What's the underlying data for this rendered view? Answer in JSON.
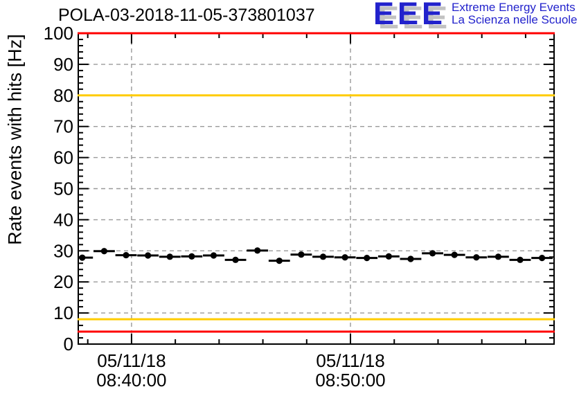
{
  "logo": {
    "acronym": "EEE",
    "line1": "Extreme Energy Events",
    "line2": "La Scienza nelle Scuole",
    "color": "#2222cc",
    "shadow_color": "#c2c2c2"
  },
  "chart_data": {
    "type": "scatter",
    "title": "POLA-03-2018-11-05-373801037",
    "ylabel": "Rate events with hits [Hz]",
    "xlabel": "",
    "ylim": [
      0,
      100
    ],
    "y_tick_step": 10,
    "y_minor_tick_step": 2,
    "y_ticks": [
      0,
      10,
      20,
      30,
      40,
      50,
      60,
      70,
      80,
      90,
      100
    ],
    "x_range": [
      "08:37:34",
      "08:59:18"
    ],
    "x_minor_tick_step_minutes": 2,
    "x_major_ticks": [
      {
        "date": "05/11/18",
        "time": "08:40:00"
      },
      {
        "date": "05/11/18",
        "time": "08:50:00"
      }
    ],
    "grid": {
      "style": "dashed",
      "color": "#999999",
      "on_major_ticks": true
    },
    "frame_color": "#000000",
    "threshold_lines": [
      {
        "value": 100,
        "color": "#ff0000"
      },
      {
        "value": 80,
        "color": "#ffcc00"
      },
      {
        "value": 8,
        "color": "#ffcc00"
      },
      {
        "value": 4,
        "color": "#ff0000"
      }
    ],
    "series": [
      {
        "name": "rate_events_with_hits",
        "marker": "filled-circle",
        "color": "#000000",
        "bin_width_minutes": 1,
        "points": [
          {
            "t": "08:37:45",
            "v": 27.8
          },
          {
            "t": "08:38:45",
            "v": 29.9
          },
          {
            "t": "08:39:45",
            "v": 28.6
          },
          {
            "t": "08:40:45",
            "v": 28.5
          },
          {
            "t": "08:41:45",
            "v": 28.1
          },
          {
            "t": "08:42:45",
            "v": 28.2
          },
          {
            "t": "08:43:45",
            "v": 28.5
          },
          {
            "t": "08:44:45",
            "v": 27.1
          },
          {
            "t": "08:45:45",
            "v": 30.1
          },
          {
            "t": "08:46:45",
            "v": 26.8
          },
          {
            "t": "08:47:45",
            "v": 28.8
          },
          {
            "t": "08:48:45",
            "v": 28.1
          },
          {
            "t": "08:49:45",
            "v": 27.9
          },
          {
            "t": "08:50:45",
            "v": 27.7
          },
          {
            "t": "08:51:45",
            "v": 28.2
          },
          {
            "t": "08:52:45",
            "v": 27.4
          },
          {
            "t": "08:53:45",
            "v": 29.2
          },
          {
            "t": "08:54:45",
            "v": 28.7
          },
          {
            "t": "08:55:45",
            "v": 27.9
          },
          {
            "t": "08:56:45",
            "v": 28.1
          },
          {
            "t": "08:57:45",
            "v": 27.1
          },
          {
            "t": "08:58:45",
            "v": 27.7
          }
        ]
      }
    ]
  }
}
